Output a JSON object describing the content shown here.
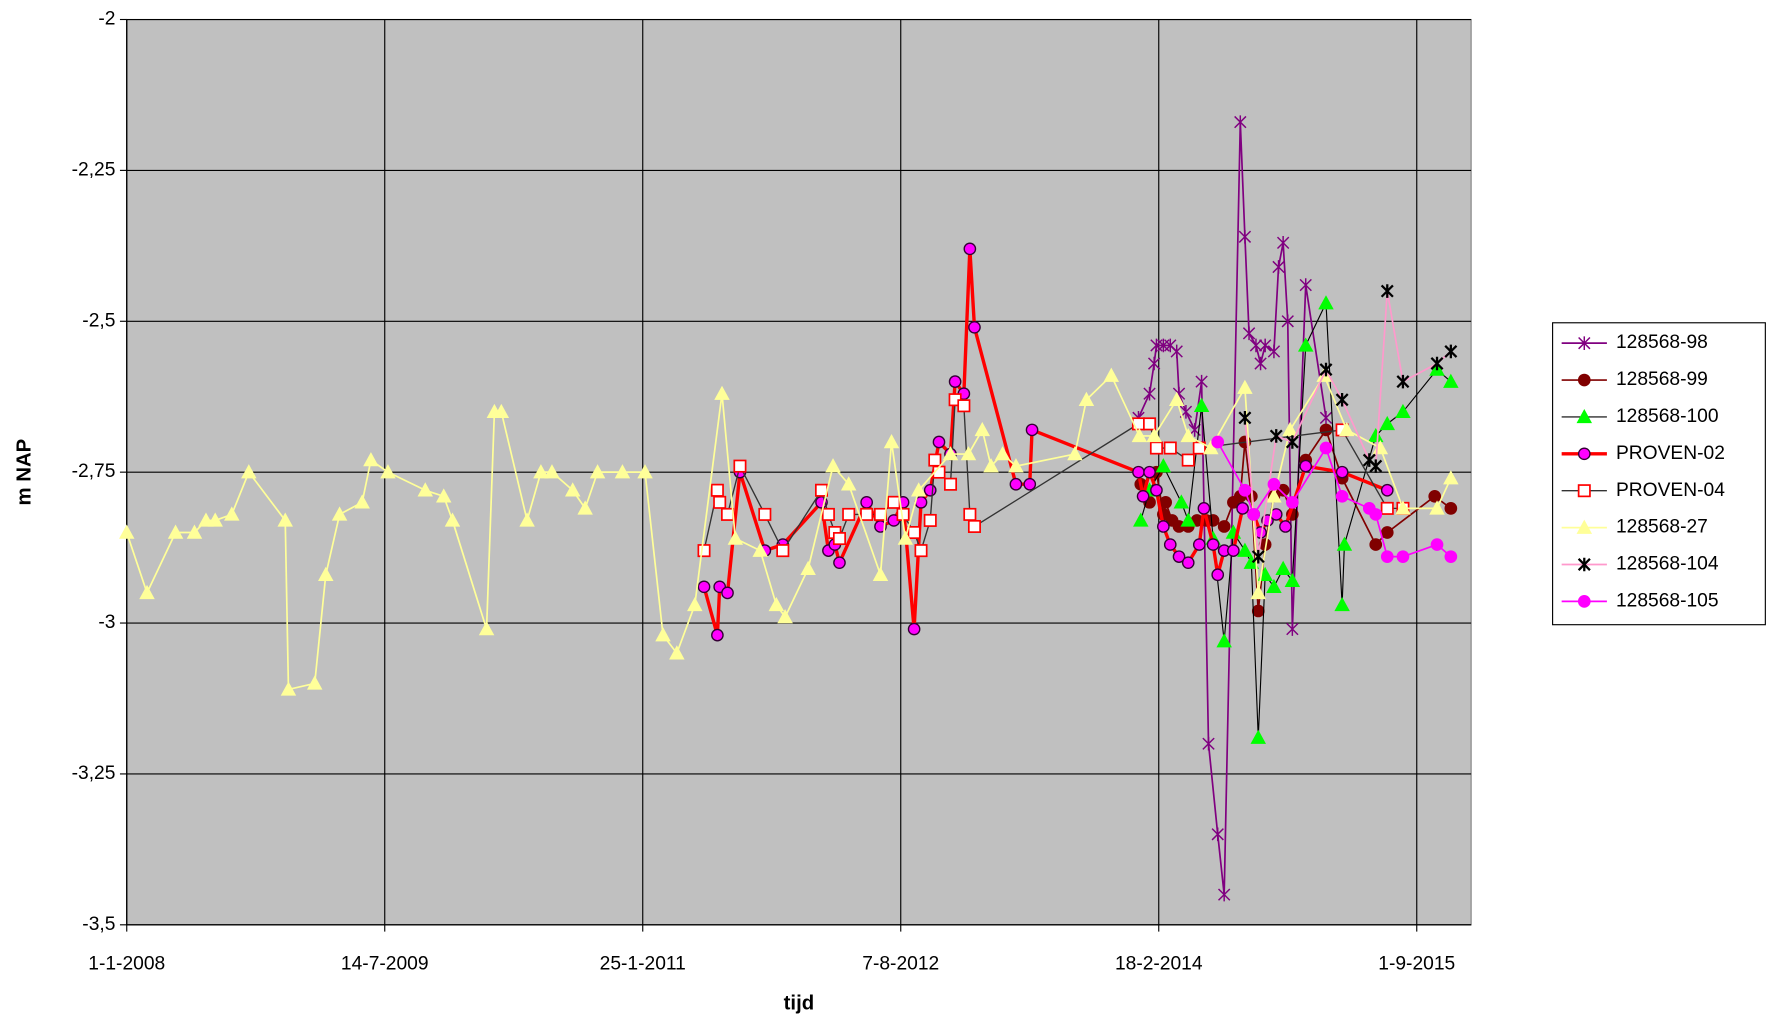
{
  "chart_data": {
    "type": "line",
    "x_label": "tijd",
    "y_label": "m NAP",
    "xlim": [
      "2008-01-01",
      "2015-12-28"
    ],
    "xticks": [
      {
        "value": "2008-01-01",
        "label": "1-1-2008"
      },
      {
        "value": "2009-07-14",
        "label": "14-7-2009"
      },
      {
        "value": "2011-01-25",
        "label": "25-1-2011"
      },
      {
        "value": "2012-08-07",
        "label": "7-8-2012"
      },
      {
        "value": "2014-02-18",
        "label": "18-2-2014"
      },
      {
        "value": "2015-09-01",
        "label": "1-9-2015"
      }
    ],
    "ylim": [
      -3.5,
      -2
    ],
    "yticks": [
      {
        "value": -3.5,
        "label": "-3,5"
      },
      {
        "value": -3.25,
        "label": "-3,25"
      },
      -3,
      {
        "value": -2.75,
        "label": "-2,75"
      },
      {
        "value": -2.5,
        "label": "-2,5"
      },
      {
        "value": -2.25,
        "label": "-2,25"
      },
      -2
    ],
    "grid": true,
    "plot_background": "#c0c0c0",
    "legend": "right",
    "series": [
      {
        "name": "128568-98",
        "color": "#800080",
        "line_width": 1.5,
        "marker": "star",
        "marker_color": "#800080",
        "marker_fill": "none",
        "x": [
          "2014-01-05",
          "2014-01-29",
          "2014-02-08",
          "2014-02-13",
          "2014-02-28",
          "2014-03-15",
          "2014-03-29",
          "2014-04-03",
          "2014-04-18",
          "2014-05-07",
          "2014-05-22",
          "2014-06-06",
          "2014-06-26",
          "2014-07-10",
          "2014-08-14",
          "2014-08-24",
          "2014-09-02",
          "2014-09-17",
          "2014-09-27",
          "2014-10-07",
          "2014-10-26",
          "2014-11-05",
          "2014-11-15",
          "2014-11-25",
          "2014-12-05",
          "2015-01-03",
          "2015-02-16"
        ],
        "values": [
          -2.66,
          -2.62,
          -2.57,
          -2.54,
          -2.54,
          -2.54,
          -2.55,
          -2.62,
          -2.65,
          -2.68,
          -2.6,
          -3.2,
          -3.35,
          -3.45,
          -2.17,
          -2.36,
          -2.52,
          -2.54,
          -2.57,
          -2.54,
          -2.55,
          -2.41,
          -2.37,
          -2.5,
          -3.01,
          -2.44,
          -2.66
        ]
      },
      {
        "name": "128568-99",
        "color": "#800000",
        "line_width": 1.5,
        "marker": "circle",
        "marker_color": "#800000",
        "marker_fill": "#800000",
        "x": [
          "2014-01-10",
          "2014-01-29",
          "2014-02-13",
          "2014-02-28",
          "2014-03-05",
          "2014-03-19",
          "2014-04-03",
          "2014-04-23",
          "2014-05-12",
          "2014-06-01",
          "2014-06-16",
          "2014-07-10",
          "2014-07-30",
          "2014-08-14",
          "2014-08-24",
          "2014-09-07",
          "2014-09-22",
          "2014-10-07",
          "2014-10-26",
          "2014-11-15",
          "2014-12-05",
          "2015-01-03",
          "2015-02-16",
          "2015-03-23",
          "2015-06-04",
          "2015-06-29",
          "2015-10-10",
          "2015-11-14"
        ],
        "values": [
          -2.77,
          -2.8,
          -2.75,
          -2.82,
          -2.8,
          -2.83,
          -2.84,
          -2.84,
          -2.83,
          -2.83,
          -2.83,
          -2.84,
          -2.8,
          -2.79,
          -2.7,
          -2.79,
          -2.98,
          -2.87,
          -2.79,
          -2.78,
          -2.82,
          -2.73,
          -2.68,
          -2.76,
          -2.87,
          -2.85,
          -2.79,
          -2.81
        ]
      },
      {
        "name": "128568-100",
        "color": "#000000",
        "line_width": 1,
        "marker": "triangle",
        "marker_color": "#00ff00",
        "marker_fill": "#00ff00",
        "x": [
          "2014-01-10",
          "2014-01-29",
          "2014-02-28",
          "2014-04-08",
          "2014-04-23",
          "2014-05-22",
          "2014-06-16",
          "2014-07-10",
          "2014-07-30",
          "2014-08-24",
          "2014-09-07",
          "2014-09-22",
          "2014-10-07",
          "2014-10-26",
          "2014-11-15",
          "2014-12-05",
          "2015-01-03",
          "2015-02-16",
          "2015-03-23",
          "2015-03-28",
          "2015-06-04",
          "2015-06-29",
          "2015-08-02",
          "2015-10-15",
          "2015-11-14"
        ],
        "values": [
          -2.83,
          -2.78,
          -2.74,
          -2.8,
          -2.83,
          -2.64,
          -2.86,
          -3.03,
          -2.85,
          -2.88,
          -2.9,
          -3.19,
          -2.92,
          -2.94,
          -2.91,
          -2.93,
          -2.54,
          -2.47,
          -2.97,
          -2.87,
          -2.69,
          -2.67,
          -2.65,
          -2.58,
          -2.6
        ]
      },
      {
        "name": "PROVEN-02",
        "color": "#ff0000",
        "line_width": 3,
        "marker": "circle",
        "marker_color": "#330033",
        "marker_fill": "#ff00ff",
        "x": [
          "2011-06-07",
          "2011-07-06",
          "2011-07-11",
          "2011-07-28",
          "2011-08-24",
          "2011-10-17",
          "2011-11-25",
          "2012-02-17",
          "2012-03-03",
          "2012-03-17",
          "2012-03-27",
          "2012-05-25",
          "2012-06-24",
          "2012-07-23",
          "2012-08-12",
          "2012-09-05",
          "2012-09-20",
          "2012-10-10",
          "2012-10-29",
          "2012-11-23",
          "2012-12-03",
          "2012-12-22",
          "2013-01-04",
          "2013-01-14",
          "2013-04-14",
          "2013-05-14",
          "2013-05-19",
          "2014-01-05",
          "2014-01-15",
          "2014-01-29",
          "2014-02-13",
          "2014-02-28",
          "2014-03-15",
          "2014-04-03",
          "2014-04-23",
          "2014-05-17",
          "2014-05-27",
          "2014-06-16",
          "2014-06-26",
          "2014-07-10",
          "2014-07-30",
          "2014-08-19",
          "2014-09-12",
          "2014-09-27",
          "2014-10-12",
          "2014-10-31",
          "2014-11-20",
          "2015-01-03",
          "2015-03-23",
          "2015-06-29"
        ],
        "values": [
          -2.94,
          -3.02,
          -2.94,
          -2.95,
          -2.75,
          -2.88,
          -2.87,
          -2.8,
          -2.88,
          -2.87,
          -2.9,
          -2.8,
          -2.84,
          -2.83,
          -2.8,
          -3.01,
          -2.8,
          -2.78,
          -2.7,
          -2.72,
          -2.6,
          -2.62,
          -2.38,
          -2.51,
          -2.77,
          -2.77,
          -2.68,
          -2.75,
          -2.79,
          -2.75,
          -2.78,
          -2.84,
          -2.87,
          -2.89,
          -2.9,
          -2.87,
          -2.81,
          -2.87,
          -2.92,
          -2.88,
          -2.88,
          -2.81,
          -2.82,
          -2.85,
          -2.83,
          -2.82,
          -2.84,
          -2.74,
          -2.75,
          -2.78
        ]
      },
      {
        "name": "PROVEN-04",
        "color": "#333333",
        "line_width": 1.2,
        "marker": "square",
        "marker_color": "#ff0000",
        "marker_fill": "#ffffff",
        "x": [
          "2011-06-07",
          "2011-07-06",
          "2011-07-11",
          "2011-07-28",
          "2011-08-24",
          "2011-10-17",
          "2011-11-25",
          "2012-02-17",
          "2012-03-03",
          "2012-03-17",
          "2012-03-27",
          "2012-04-16",
          "2012-05-25",
          "2012-06-24",
          "2012-07-23",
          "2012-08-12",
          "2012-09-05",
          "2012-09-20",
          "2012-10-10",
          "2012-10-20",
          "2012-10-29",
          "2012-11-23",
          "2012-12-03",
          "2012-12-22",
          "2013-01-04",
          "2013-01-14",
          "2014-01-05",
          "2014-01-29",
          "2014-02-13",
          "2014-03-15",
          "2014-04-23",
          "2014-05-17",
          "2015-03-23",
          "2015-06-29",
          "2015-08-02"
        ],
        "values": [
          -2.88,
          -2.78,
          -2.8,
          -2.82,
          -2.74,
          -2.82,
          -2.88,
          -2.78,
          -2.82,
          -2.85,
          -2.86,
          -2.82,
          -2.82,
          -2.82,
          -2.8,
          -2.82,
          -2.85,
          -2.88,
          -2.83,
          -2.73,
          -2.75,
          -2.77,
          -2.63,
          -2.64,
          -2.82,
          -2.84,
          -2.67,
          -2.67,
          -2.71,
          -2.71,
          -2.73,
          -2.71,
          -2.68,
          -2.81,
          -2.81
        ]
      },
      {
        "name": "128568-27",
        "color": "#ffff99",
        "line_width": 1.5,
        "marker": "triangle",
        "marker_color": "#ffff99",
        "marker_fill": "#ffff99",
        "x": [
          "2008-01-01",
          "2008-02-14",
          "2008-04-16",
          "2008-05-27",
          "2008-06-21",
          "2008-07-11",
          "2008-08-16",
          "2008-09-22",
          "2008-12-10",
          "2008-12-17",
          "2009-02-12",
          "2009-03-08",
          "2009-04-07",
          "2009-05-26",
          "2009-06-14",
          "2009-07-21",
          "2009-10-10",
          "2009-11-19",
          "2009-12-08",
          "2010-02-20",
          "2010-03-09",
          "2010-03-24",
          "2010-05-19",
          "2010-06-18",
          "2010-07-12",
          "2010-08-26",
          "2010-09-22",
          "2010-10-19",
          "2010-12-12",
          "2011-01-30",
          "2011-03-10",
          "2011-04-09",
          "2011-05-18",
          "2011-07-16",
          "2011-08-14",
          "2011-10-07",
          "2011-11-11",
          "2011-11-30",
          "2012-01-19",
          "2012-03-13",
          "2012-04-16",
          "2012-06-24",
          "2012-07-18",
          "2012-08-17",
          "2012-09-15",
          "2012-11-23",
          "2013-01-01",
          "2013-01-31",
          "2013-02-19",
          "2013-03-16",
          "2013-04-14",
          "2013-08-20",
          "2013-09-14",
          "2013-11-07",
          "2014-01-07",
          "2014-02-08",
          "2014-03-29",
          "2014-04-23",
          "2014-06-11",
          "2014-08-24",
          "2014-09-22",
          "2014-10-26",
          "2014-11-30",
          "2015-02-12",
          "2015-04-02",
          "2015-06-14",
          "2015-08-02",
          "2015-10-15",
          "2015-11-14"
        ],
        "values": [
          -2.85,
          -2.95,
          -2.85,
          -2.85,
          -2.83,
          -2.83,
          -2.82,
          -2.75,
          -2.83,
          -3.11,
          -3.1,
          -2.92,
          -2.82,
          -2.8,
          -2.73,
          -2.75,
          -2.78,
          -2.79,
          -2.83,
          -3.01,
          -2.65,
          -2.65,
          -2.83,
          -2.75,
          -2.75,
          -2.78,
          -2.81,
          -2.75,
          -2.75,
          -2.75,
          -3.02,
          -3.05,
          -2.97,
          -2.62,
          -2.86,
          -2.88,
          -2.97,
          -2.99,
          -2.91,
          -2.74,
          -2.77,
          -2.92,
          -2.7,
          -2.86,
          -2.78,
          -2.72,
          -2.72,
          -2.68,
          -2.74,
          -2.72,
          -2.74,
          -2.72,
          -2.63,
          -2.59,
          -2.69,
          -2.69,
          -2.63,
          -2.69,
          -2.71,
          -2.61,
          -2.95,
          -2.79,
          -2.68,
          -2.59,
          -2.68,
          -2.71,
          -2.81,
          -2.81,
          -2.76
        ]
      },
      {
        "name": "128568-104",
        "color": "#ff99cc",
        "line_width": 1.5,
        "marker": "xstar",
        "marker_color": "#000000",
        "marker_fill": "none",
        "x": [
          "2014-08-24",
          "2014-09-22",
          "2014-10-31",
          "2014-12-05",
          "2015-02-16",
          "2015-03-23",
          "2015-05-21",
          "2015-06-04",
          "2015-06-29",
          "2015-08-02",
          "2015-10-15",
          "2015-11-14"
        ],
        "values": [
          -2.66,
          -2.89,
          -2.69,
          -2.7,
          -2.58,
          -2.63,
          -2.73,
          -2.74,
          -2.45,
          -2.6,
          -2.57,
          -2.55
        ]
      },
      {
        "name": "128568-105",
        "color": "#ff00ff",
        "line_width": 1.5,
        "marker": "circle",
        "marker_color": "#ff00ff",
        "marker_fill": "#ff00ff",
        "x": [
          "2014-06-26",
          "2014-08-24",
          "2014-09-12",
          "2014-10-26",
          "2014-12-05",
          "2015-02-16",
          "2015-03-23",
          "2015-05-21",
          "2015-06-04",
          "2015-06-29",
          "2015-08-02",
          "2015-10-15",
          "2015-11-14"
        ],
        "values": [
          -2.7,
          -2.78,
          -2.82,
          -2.77,
          -2.8,
          -2.71,
          -2.79,
          -2.81,
          -2.82,
          -2.89,
          -2.89,
          -2.87,
          -2.89
        ]
      }
    ]
  }
}
